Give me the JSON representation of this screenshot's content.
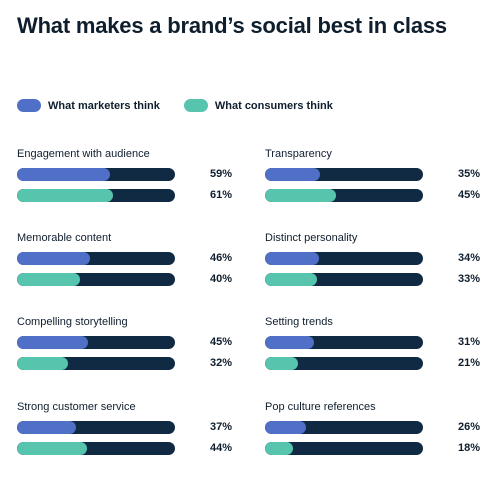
{
  "title": "What makes a brand’s social best in class",
  "legend": {
    "marketers": "What marketers think",
    "consumers": "What consumers think"
  },
  "colors": {
    "marketers": "#5070c8",
    "consumers": "#57c4ad",
    "track": "#102a43"
  },
  "chart_data": {
    "type": "bar",
    "orientation": "horizontal",
    "xlim": [
      0,
      100
    ],
    "unit": "%",
    "categories": [
      "Engagement with audience",
      "Memorable content",
      "Compelling storytelling",
      "Strong customer service",
      "Transparency",
      "Distinct personality",
      "Setting trends",
      "Pop culture references"
    ],
    "series": [
      {
        "name": "What marketers think",
        "values": [
          59,
          46,
          45,
          37,
          35,
          34,
          31,
          26
        ]
      },
      {
        "name": "What consumers think",
        "values": [
          61,
          40,
          32,
          44,
          45,
          33,
          21,
          18
        ]
      }
    ],
    "value_labels": {
      "marketers": [
        "59%",
        "46%",
        "45%",
        "37%",
        "35%",
        "34%",
        "31%",
        "26%"
      ],
      "consumers": [
        "61%",
        "40%",
        "32%",
        "44%",
        "45%",
        "33%",
        "21%",
        "18%"
      ]
    }
  }
}
